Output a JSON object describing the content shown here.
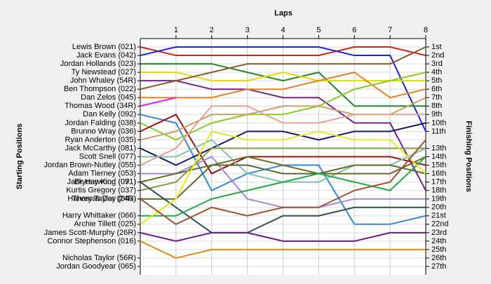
{
  "chart_data": {
    "type": "lap",
    "title": "Laps",
    "y_label": "Starting Positions",
    "y2_label": "Finishing Positions",
    "x": [
      0,
      1,
      2,
      3,
      4,
      5,
      6,
      7,
      8
    ],
    "xlim": [
      0,
      8
    ],
    "xticks": [
      1,
      2,
      3,
      4,
      5,
      6,
      7,
      8
    ],
    "ylim": [
      1,
      27
    ],
    "grid": true,
    "finish_labels": [
      "1st",
      "2nd",
      "3rd",
      "4th",
      "5th",
      "6th",
      "7th",
      "8th",
      "9th",
      "10th",
      "11th",
      null,
      "13th",
      "14th",
      "15th",
      "16th",
      "17th",
      "18th",
      "19th",
      "20th",
      "21st",
      "22nd",
      "23rd",
      "24th",
      "25th",
      "26th",
      "27th"
    ],
    "series": [
      {
        "name": "Lewis Brown (021)",
        "color": "#cc2222",
        "values": [
          1,
          2,
          2,
          2,
          2,
          2,
          1,
          1,
          2
        ]
      },
      {
        "name": "Jack Evans (042)",
        "color": "#2222cc",
        "values": [
          2,
          1,
          1,
          1,
          1,
          1,
          2,
          2,
          11
        ]
      },
      {
        "name": "Jordan Hollands (023)",
        "color": "#228822",
        "values": [
          3,
          3,
          3,
          4,
          5,
          4,
          8,
          8,
          8
        ]
      },
      {
        "name": "Ty Newstead (027)",
        "color": "#e8d800",
        "values": [
          4,
          4,
          5,
          5,
          4,
          5,
          5,
          5,
          5
        ]
      },
      {
        "name": "John Whaley (54R)",
        "color": "#772288",
        "values": [
          5,
          5,
          6,
          6,
          7,
          7,
          10,
          10,
          18
        ]
      },
      {
        "name": "Ben Thompson (022)",
        "color": "#8b5a2b",
        "values": [
          6,
          5,
          4,
          3,
          3,
          3,
          3,
          3,
          1
        ]
      },
      {
        "name": "Dan Zelos (045)",
        "color": "#e88020",
        "values": [
          7,
          7,
          7,
          6,
          6,
          5,
          4,
          7,
          6
        ]
      },
      {
        "name": "Thomas Wood (34R)",
        "color": "#dd22dd",
        "values": [
          8,
          7,
          null,
          null,
          null,
          null,
          null,
          null,
          null
        ]
      },
      {
        "name": "Dan Kelly (092)",
        "color": "#3388dd",
        "values": [
          9,
          10,
          18,
          16,
          15,
          15,
          22,
          22,
          21
        ]
      },
      {
        "name": "Jordan Falding (038)",
        "color": "#88cc22",
        "values": [
          10,
          12,
          10,
          9,
          9,
          8,
          6,
          5,
          4
        ]
      },
      {
        "name": "Brunno Wray (036)",
        "color": "#991111",
        "values": [
          11,
          9,
          16,
          14,
          14,
          14,
          14,
          14,
          15
        ]
      },
      {
        "name": "Ryan Anderton (035)",
        "color": "#c8a060",
        "values": [
          12,
          11,
          9,
          9,
          8,
          8,
          9,
          9,
          7
        ]
      },
      {
        "name": "Jack McCarthy (081)",
        "color": "#1a1a66",
        "values": [
          13,
          15,
          13,
          11,
          11,
          12,
          11,
          11,
          10
        ]
      },
      {
        "name": "Scott Snell (077)",
        "color": "#80c0b0",
        "values": [
          14,
          14,
          12,
          16,
          17,
          17,
          15,
          15,
          13
        ]
      },
      {
        "name": "Jordan Brown-Nutley (055)",
        "color": "#e8a090",
        "values": [
          15,
          13,
          8,
          8,
          10,
          10,
          9,
          9,
          9
        ]
      },
      {
        "name": "Adam Tierney (053)",
        "color": "#a088dd",
        "values": [
          16,
          16,
          14,
          19,
          20,
          20,
          19,
          19,
          19
        ]
      },
      {
        "name": "Bryony King (091)",
        "color": "#6b6b22",
        "values": [
          17,
          16,
          15,
          14,
          15,
          16,
          16,
          16,
          14
        ]
      },
      {
        "name": "Kurtis Gregory (037)",
        "color": "#8a9a40",
        "values": [
          18,
          17,
          13,
          13,
          13,
          13,
          13,
          13,
          13
        ]
      },
      {
        "name": "Thomas Day (043)",
        "color": "#556b2f",
        "values": [
          19,
          19,
          15,
          15,
          16,
          16,
          15,
          15,
          16
        ]
      },
      {
        "name": "Jack Harwood (071)",
        "color": "#2f4f4f",
        "values": [
          17,
          20,
          23,
          23,
          21,
          21,
          20,
          20,
          20
        ]
      },
      {
        "name": "Harry Whittaker (066)",
        "color": "#22aa44",
        "values": [
          21,
          21,
          19,
          18,
          17,
          16,
          17,
          18,
          14
        ]
      },
      {
        "name": "Archie Tillett (025)",
        "color": "#e8e820",
        "values": [
          22,
          19,
          11,
          12,
          12,
          11,
          12,
          12,
          16
        ]
      },
      {
        "name": "Harvey Taylor (24R)",
        "color": "#a0522d",
        "values": [
          19,
          22,
          20,
          21,
          20,
          20,
          18,
          17,
          12
        ]
      },
      {
        "name": "James Scott-Murphy (26R)",
        "color": "#6a1a8a",
        "values": [
          23,
          24,
          23,
          23,
          24,
          24,
          24,
          23,
          23
        ]
      },
      {
        "name": "Connor Stephenson (016)",
        "color": "#e08a10",
        "values": [
          24,
          26,
          25,
          25,
          25,
          25,
          25,
          25,
          25
        ]
      },
      {
        "name": "Nicholas Taylor (56R)",
        "color": "#999999",
        "values": [
          26,
          null,
          null,
          null,
          null,
          null,
          null,
          null,
          null
        ]
      },
      {
        "name": "Jordan Goodyear (065)",
        "color": "#999999",
        "values": [
          27,
          null,
          null,
          null,
          null,
          null,
          null,
          null,
          null
        ]
      }
    ]
  }
}
